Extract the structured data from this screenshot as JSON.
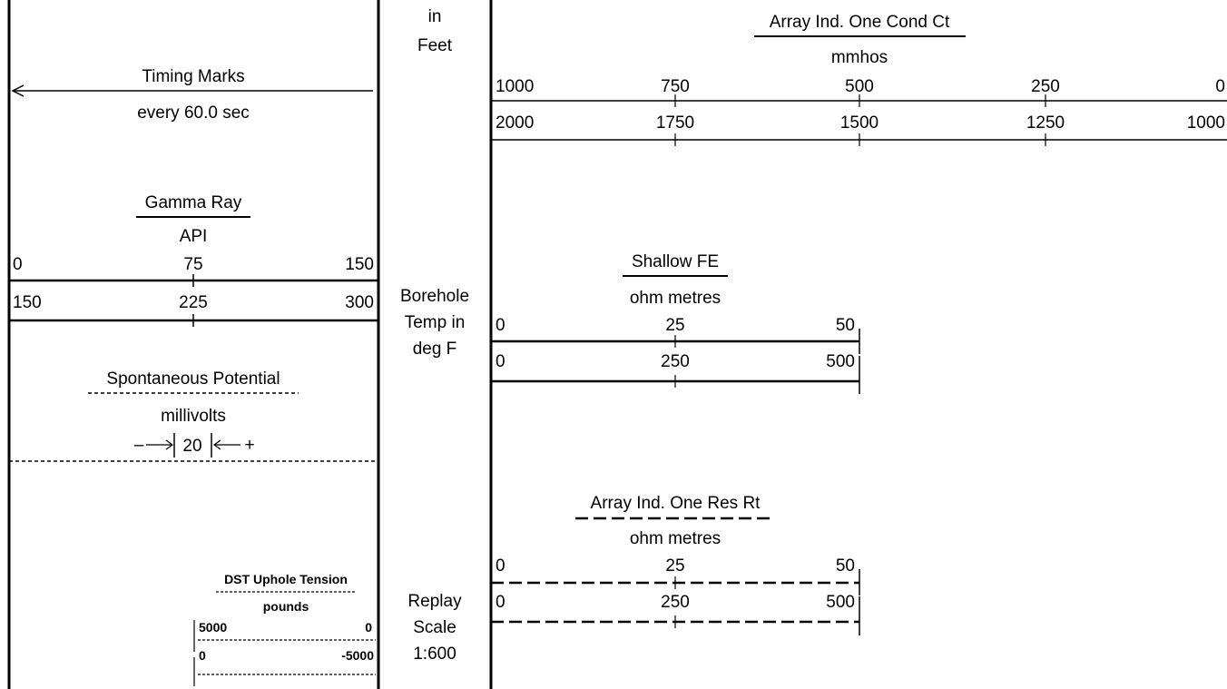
{
  "depth_track": {
    "header_top": "in",
    "header_bottom": "Feet",
    "temp_label_1": "Borehole",
    "temp_label_2": "Temp in",
    "temp_label_3": "deg F",
    "replay_1": "Replay",
    "replay_2": "Scale",
    "replay_3": "1:600"
  },
  "timing": {
    "title": "Timing Marks",
    "subtitle": "every 60.0 sec"
  },
  "gamma": {
    "title": "Gamma Ray",
    "unit": "API",
    "scale1": [
      "0",
      "75",
      "150"
    ],
    "scale2": [
      "150",
      "225",
      "300"
    ]
  },
  "sp": {
    "title": "Spontaneous Potential",
    "unit": "millivolts",
    "minus": "–",
    "value": "20",
    "plus": "+"
  },
  "dst": {
    "title": "DST Uphole Tension",
    "unit": "pounds",
    "scale1": [
      "5000",
      "0"
    ],
    "scale2": [
      "0",
      "-5000"
    ]
  },
  "cond": {
    "title": "Array Ind. One Cond Ct",
    "unit": "mmhos",
    "scale1": [
      "1000",
      "750",
      "500",
      "250",
      "0"
    ],
    "scale2": [
      "2000",
      "1750",
      "1500",
      "1250",
      "1000"
    ]
  },
  "shallow": {
    "title": "Shallow FE",
    "unit": "ohm metres",
    "scale1": [
      "0",
      "25",
      "50"
    ],
    "scale2": [
      "0",
      "250",
      "500"
    ]
  },
  "res": {
    "title": "Array Ind. One Res Rt",
    "unit": "ohm metres",
    "scale1": [
      "0",
      "25",
      "50"
    ],
    "scale2": [
      "0",
      "250",
      "500"
    ]
  }
}
